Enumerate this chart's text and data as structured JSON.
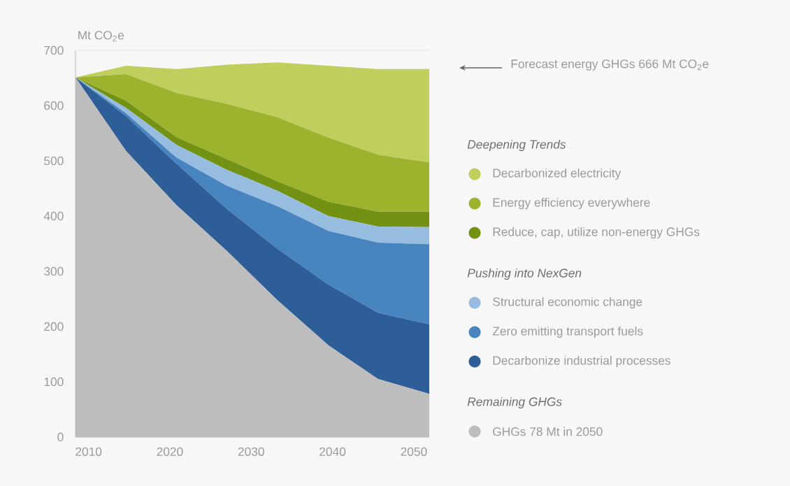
{
  "chart_data": {
    "type": "area",
    "stacked": true,
    "ylabel": "Mt CO$_{2}$e",
    "x": [
      2008.4,
      2014.6,
      2020.8,
      2027.0,
      2033.2,
      2039.5,
      2045.6,
      2051.9
    ],
    "xlim": [
      2008.4,
      2051.9
    ],
    "xticks": [
      2010,
      2020,
      2030,
      2040,
      2050
    ],
    "ylim": [
      0,
      700
    ],
    "yticks": [
      0,
      100,
      200,
      300,
      400,
      500,
      600,
      700
    ],
    "grid": "y",
    "legend": "right",
    "series": [
      {
        "name": "GHGs 78 Mt in 2050",
        "color": "#bdbdbd",
        "values": [
          651,
          518,
          420,
          337,
          248,
          166,
          105,
          78
        ]
      },
      {
        "name": "Decarbonize industrial processes",
        "color": "#2e5e98",
        "values": [
          0,
          63,
          75,
          76,
          93,
          110,
          120,
          126
        ]
      },
      {
        "name": "Zero emitting transport fuels",
        "color": "#4884c0",
        "values": [
          0,
          5,
          11,
          42,
          77,
          97,
          127,
          145
        ]
      },
      {
        "name": "Structural economic change",
        "color": "#96bde0",
        "values": [
          0,
          10,
          23,
          29,
          28,
          27,
          29,
          31
        ]
      },
      {
        "name": "Reduce, cap, utilize non-energy GHGs",
        "color": "#739214",
        "values": [
          0,
          13,
          14,
          19,
          17,
          26,
          27,
          28
        ]
      },
      {
        "name": "Energy efficiency everywhere",
        "color": "#9db22d",
        "values": [
          0,
          48,
          80,
          100,
          116,
          116,
          103,
          89
        ]
      },
      {
        "name": "Decarbonized electricity",
        "color": "#bfce5c",
        "values": [
          0,
          15,
          43,
          71,
          99,
          130,
          155,
          169
        ]
      }
    ],
    "annotations": [
      "Forecast energy GHGs 666 Mt CO$_{2}$e",
      "Deepening Trends",
      "Pushing into NexGen",
      "Remaining GHGs"
    ]
  }
}
